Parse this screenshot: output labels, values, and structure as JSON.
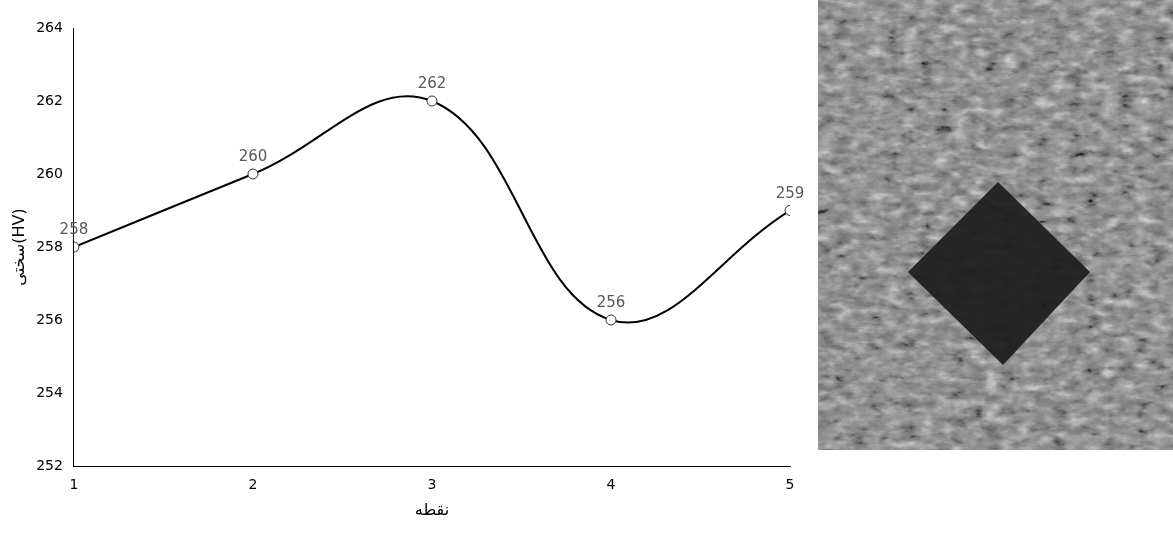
{
  "chart_data": {
    "type": "line",
    "x_label": "نقطه",
    "y_label": "سختی(HV)",
    "x": [
      1,
      2,
      3,
      4,
      5
    ],
    "values": [
      258,
      260,
      262,
      256,
      259
    ],
    "xlim": [
      1,
      5
    ],
    "xticks": [
      1,
      2,
      3,
      4,
      5
    ],
    "ylim": [
      252,
      264
    ],
    "yticks": [
      252,
      254,
      256,
      258,
      260,
      262,
      264
    ],
    "grid": false,
    "data_labels": true,
    "color": "#000000",
    "marker": "circle",
    "line_style": "solid"
  }
}
